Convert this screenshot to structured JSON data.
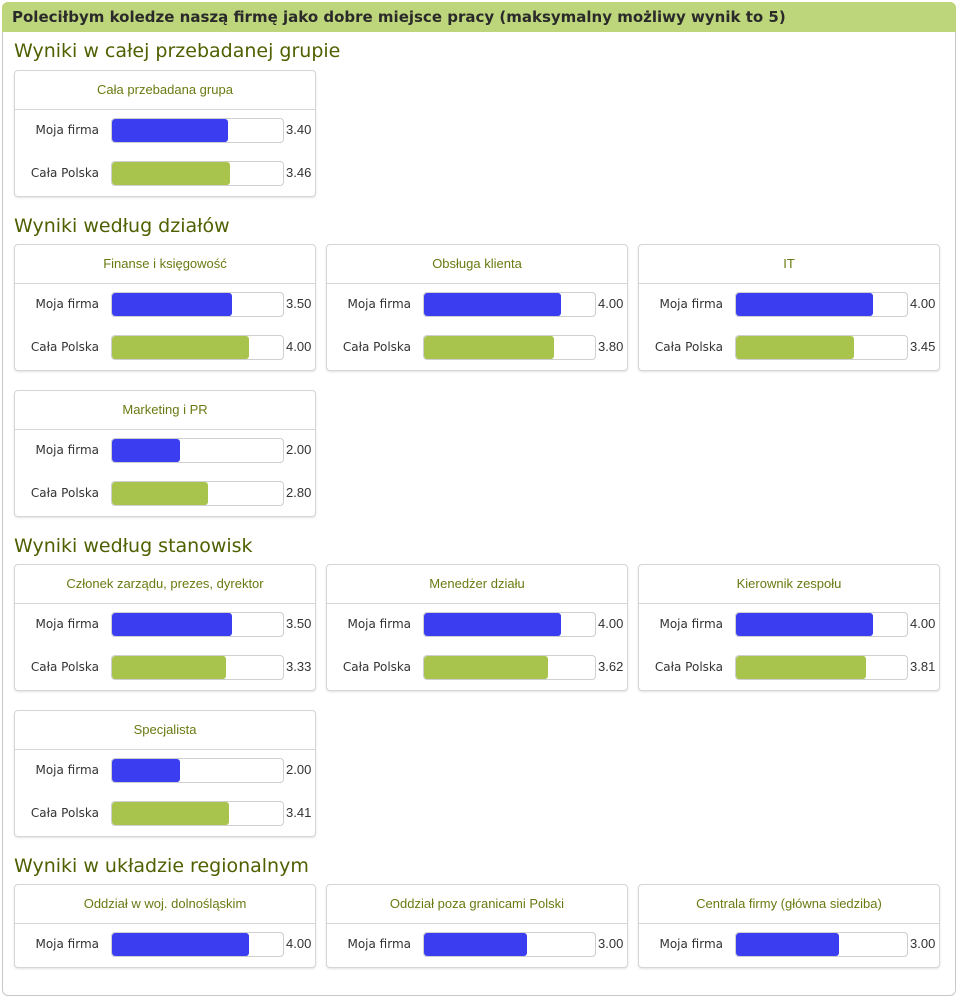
{
  "header": {
    "title": "Polecіłbym koledze naszą firmę jako dobre miejsce pracy (maksymalny możliwy wynik to 5)"
  },
  "colors": {
    "moja_firma": "#3a3df0",
    "cala_polska": "#a8c44c"
  },
  "chart_data": {
    "type": "bar",
    "max_value": 5,
    "series_names": [
      "Moja firma",
      "Cała Polska"
    ],
    "sections": [
      {
        "title": "Wyniki w całej przebadanej grupie",
        "groups": [
          {
            "title": "Cała przebadana grupa",
            "rows": [
              {
                "label": "Moja firma",
                "value": 3.4,
                "value_text": "3.40"
              },
              {
                "label": "Cała Polska",
                "value": 3.46,
                "value_text": "3.46"
              }
            ]
          }
        ]
      },
      {
        "title": "Wyniki według działów",
        "groups": [
          {
            "title": "Finanse i księgowość",
            "rows": [
              {
                "label": "Moja firma",
                "value": 3.5,
                "value_text": "3.50"
              },
              {
                "label": "Cała Polska",
                "value": 4.0,
                "value_text": "4.00"
              }
            ]
          },
          {
            "title": "Obsługa klienta",
            "rows": [
              {
                "label": "Moja firma",
                "value": 4.0,
                "value_text": "4.00"
              },
              {
                "label": "Cała Polska",
                "value": 3.8,
                "value_text": "3.80"
              }
            ]
          },
          {
            "title": "IT",
            "rows": [
              {
                "label": "Moja firma",
                "value": 4.0,
                "value_text": "4.00"
              },
              {
                "label": "Cała Polska",
                "value": 3.45,
                "value_text": "3.45"
              }
            ]
          },
          {
            "title": "Marketing i PR",
            "rows": [
              {
                "label": "Moja firma",
                "value": 2.0,
                "value_text": "2.00"
              },
              {
                "label": "Cała Polska",
                "value": 2.8,
                "value_text": "2.80"
              }
            ]
          }
        ]
      },
      {
        "title": "Wyniki według stanowisk",
        "groups": [
          {
            "title": "Członek zarządu, prezes, dyrektor",
            "rows": [
              {
                "label": "Moja firma",
                "value": 3.5,
                "value_text": "3.50"
              },
              {
                "label": "Cała Polska",
                "value": 3.33,
                "value_text": "3.33"
              }
            ]
          },
          {
            "title": "Menedżer działu",
            "rows": [
              {
                "label": "Moja firma",
                "value": 4.0,
                "value_text": "4.00"
              },
              {
                "label": "Cała Polska",
                "value": 3.62,
                "value_text": "3.62"
              }
            ]
          },
          {
            "title": "Kierownik zespołu",
            "rows": [
              {
                "label": "Moja firma",
                "value": 4.0,
                "value_text": "4.00"
              },
              {
                "label": "Cała Polska",
                "value": 3.81,
                "value_text": "3.81"
              }
            ]
          },
          {
            "title": "Specjalista",
            "rows": [
              {
                "label": "Moja firma",
                "value": 2.0,
                "value_text": "2.00"
              },
              {
                "label": "Cała Polska",
                "value": 3.41,
                "value_text": "3.41"
              }
            ]
          }
        ]
      },
      {
        "title": "Wyniki w układzie regionalnym",
        "groups": [
          {
            "title": "Oddział w woj. dolnośląskim",
            "rows": [
              {
                "label": "Moja firma",
                "value": 4.0,
                "value_text": "4.00"
              }
            ]
          },
          {
            "title": "Oddział poza granicami Polski",
            "rows": [
              {
                "label": "Moja firma",
                "value": 3.0,
                "value_text": "3.00"
              }
            ]
          },
          {
            "title": "Centrala firmy (główna siedziba)",
            "rows": [
              {
                "label": "Moja firma",
                "value": 3.0,
                "value_text": "3.00"
              }
            ]
          }
        ]
      }
    ]
  }
}
